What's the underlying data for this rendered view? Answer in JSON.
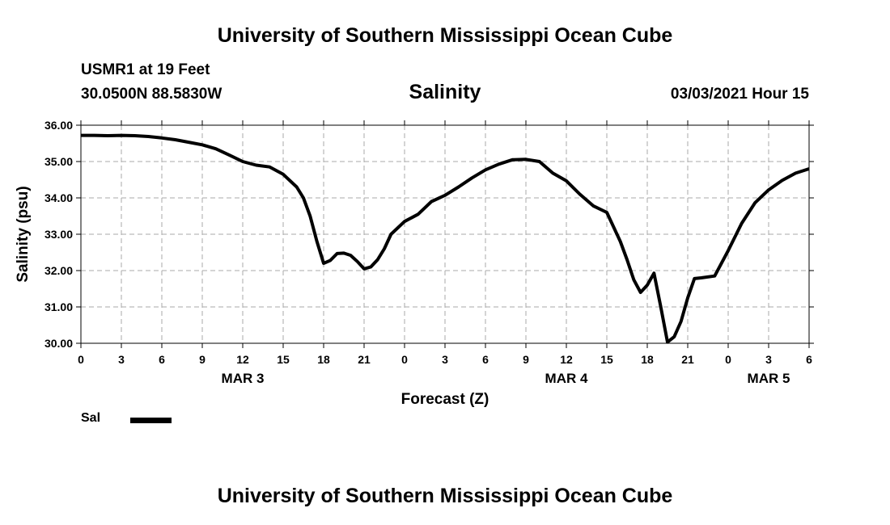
{
  "page": {
    "top_title": "University of Southern Mississippi Ocean Cube",
    "bottom_title": "University of Southern Mississippi Ocean Cube",
    "station": "USMR1 at 19 Feet",
    "coords": "30.0500N 88.5830W",
    "run_time": "03/03/2021 Hour 15"
  },
  "legend": {
    "label": "Sal",
    "color": "#000000"
  },
  "chart_data": {
    "type": "line",
    "title": "Salinity",
    "xlabel": "Forecast (Z)",
    "ylabel": "Salinity (psu)",
    "ylim": [
      30,
      36
    ],
    "yticks": [
      "30.00",
      "31.00",
      "32.00",
      "33.00",
      "34.00",
      "35.00",
      "36.00"
    ],
    "xlim": [
      0,
      54
    ],
    "xtick_values": [
      0,
      3,
      6,
      9,
      12,
      15,
      18,
      21,
      24,
      27,
      30,
      33,
      36,
      39,
      42,
      45,
      48,
      51,
      54
    ],
    "xtick_labels": [
      "0",
      "3",
      "6",
      "9",
      "12",
      "15",
      "18",
      "21",
      "0",
      "3",
      "6",
      "9",
      "12",
      "15",
      "18",
      "21",
      "0",
      "3",
      "6"
    ],
    "date_labels": [
      {
        "x": 12,
        "label": "MAR 3"
      },
      {
        "x": 36,
        "label": "MAR 4"
      },
      {
        "x": 51,
        "label": "MAR 5"
      }
    ],
    "grid": true,
    "series": [
      {
        "name": "Sal",
        "color": "#000000",
        "x": [
          0,
          1,
          2,
          3,
          4,
          5,
          6,
          7,
          8,
          9,
          10,
          11,
          12,
          13,
          14,
          15,
          16,
          16.5,
          17,
          17.5,
          18,
          18.5,
          19,
          19.5,
          20,
          20.5,
          21,
          21.5,
          22,
          22.5,
          23,
          24,
          25,
          26,
          27,
          28,
          29,
          30,
          31,
          32,
          33,
          34,
          35,
          36,
          37,
          38,
          39,
          40,
          40.5,
          41,
          41.5,
          42,
          42.5,
          43,
          43.5,
          44,
          44.5,
          45,
          45.5,
          46,
          47,
          48,
          49,
          50,
          51,
          52,
          53,
          54
        ],
        "values": [
          35.72,
          35.72,
          35.71,
          35.72,
          35.71,
          35.69,
          35.65,
          35.6,
          35.53,
          35.46,
          35.35,
          35.18,
          35.0,
          34.9,
          34.85,
          34.65,
          34.3,
          34.0,
          33.5,
          32.8,
          32.2,
          32.28,
          32.47,
          32.48,
          32.42,
          32.25,
          32.05,
          32.1,
          32.3,
          32.6,
          33.0,
          33.35,
          33.55,
          33.9,
          34.07,
          34.3,
          34.55,
          34.77,
          34.93,
          35.05,
          35.06,
          35.0,
          34.68,
          34.47,
          34.1,
          33.78,
          33.6,
          32.8,
          32.3,
          31.75,
          31.4,
          31.6,
          31.93,
          31.0,
          30.03,
          30.18,
          30.6,
          31.25,
          31.78,
          31.8,
          31.85,
          32.55,
          33.3,
          33.87,
          34.22,
          34.48,
          34.68,
          34.8
        ]
      }
    ]
  }
}
